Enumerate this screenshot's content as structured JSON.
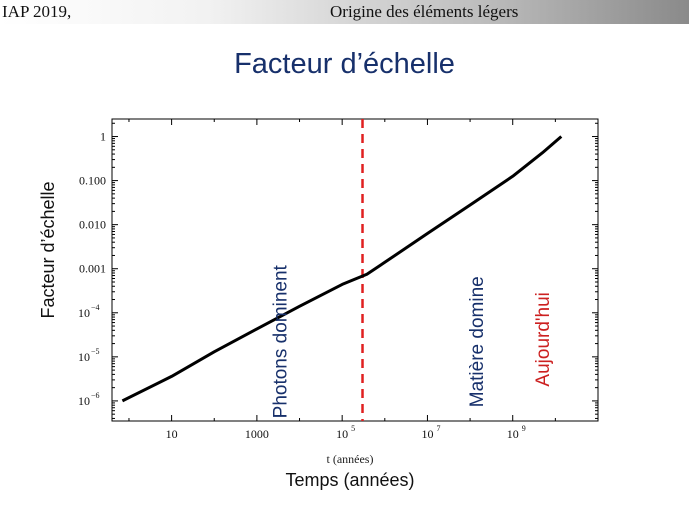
{
  "header": {
    "left": "IAP 2019,",
    "right": "Origine des éléments légers"
  },
  "slide": {
    "title": "Facteur d’échelle",
    "below_axis_label": "t (années)",
    "bottom_label": "Temps (années)"
  },
  "chart_data": {
    "type": "line",
    "xlabel": "",
    "ylabel": "Facteur d’échelle",
    "xscale": "log",
    "yscale": "log",
    "xlim": [
      0.4,
      100000000000.0
    ],
    "ylim": [
      3.5e-07,
      2.5
    ],
    "xticks": [
      {
        "value": 10,
        "base": "10",
        "exp": ""
      },
      {
        "value": 1000,
        "base": "1000",
        "exp": ""
      },
      {
        "value": 100000,
        "base": "10",
        "exp": "5"
      },
      {
        "value": 10000000,
        "base": "10",
        "exp": "7"
      },
      {
        "value": 1000000000,
        "base": "10",
        "exp": "9"
      }
    ],
    "yticks": [
      {
        "value": 1e-06,
        "base": "10",
        "exp": "−6"
      },
      {
        "value": 1e-05,
        "base": "10",
        "exp": "−5"
      },
      {
        "value": 0.0001,
        "base": "10",
        "exp": "−4"
      },
      {
        "value": 0.001,
        "base": "0.001",
        "exp": ""
      },
      {
        "value": 0.01,
        "base": "0.010",
        "exp": ""
      },
      {
        "value": 0.1,
        "base": "0.100",
        "exp": ""
      },
      {
        "value": 1,
        "base": "1",
        "exp": ""
      }
    ],
    "series": [
      {
        "color": "#000000",
        "x": [
          0.7,
          10,
          100,
          1000,
          10000,
          100000,
          380000,
          1000000,
          10000000,
          100000000,
          1000000000,
          5000000000,
          13800000000
        ],
        "y": [
          1e-06,
          3.6e-06,
          1.3e-05,
          4.3e-05,
          0.00014,
          0.00044,
          0.00075,
          0.0014,
          0.0063,
          0.028,
          0.125,
          0.43,
          1.0
        ]
      }
    ],
    "vline": {
      "x": 300000,
      "color": "#e02020",
      "style": "dashed"
    },
    "annotations": [
      {
        "text": "Photons dominent",
        "x": 5000,
        "y": 2.2e-05,
        "color": "#17306b"
      },
      {
        "text": "Matière domine",
        "x": 200000000,
        "y": 2.2e-05,
        "color": "#17306b"
      },
      {
        "text": "Aujourd'hui",
        "x": 7000000000,
        "y": 2.5e-05,
        "color": "#cc2020"
      }
    ],
    "grid": false
  }
}
